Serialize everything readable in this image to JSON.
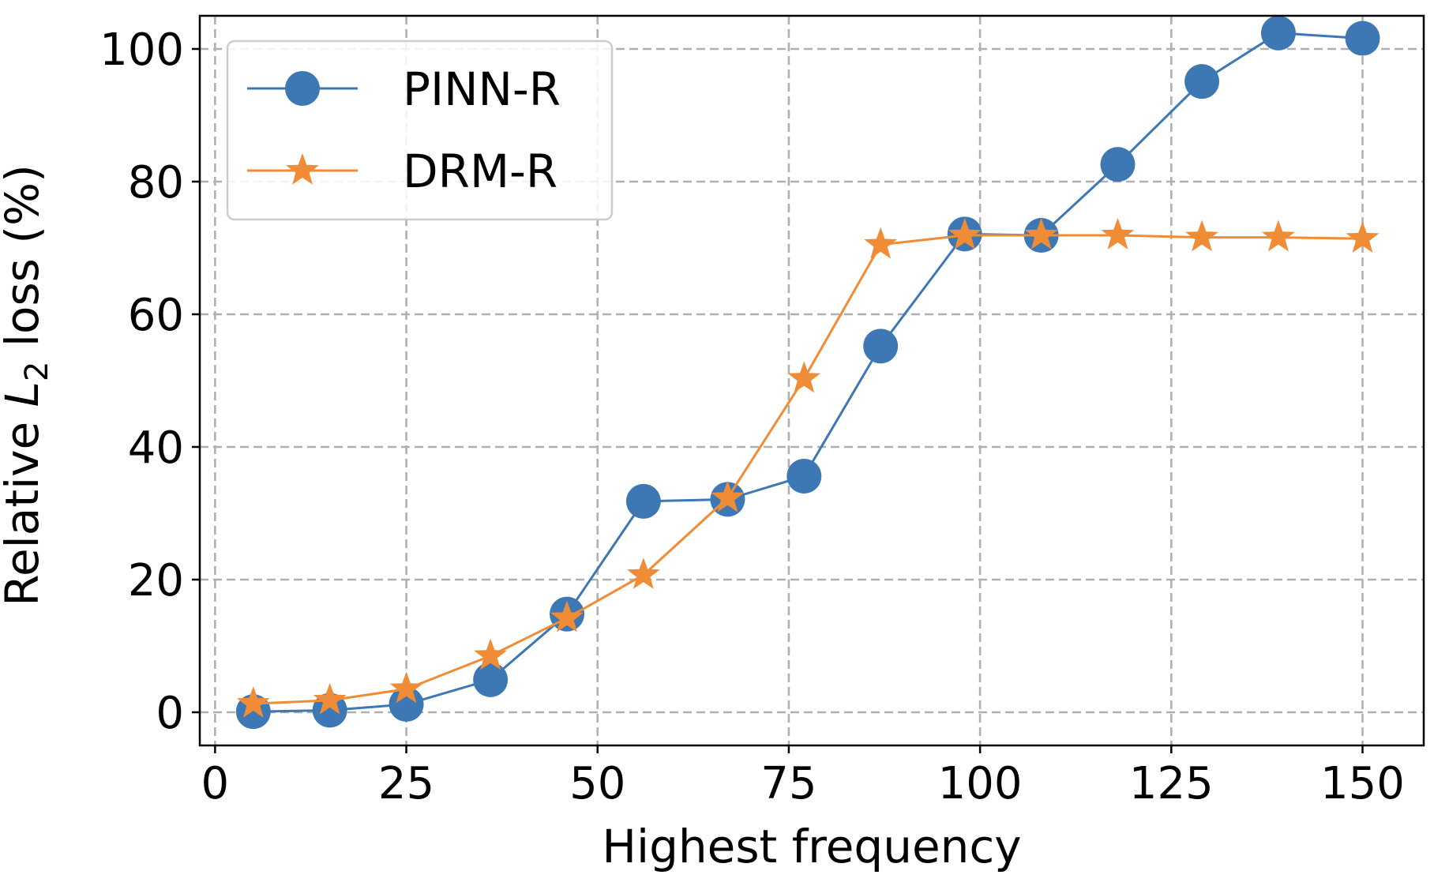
{
  "chart_data": {
    "type": "line",
    "title": "",
    "xlabel": "Highest frequency",
    "ylabel": {
      "prefix": "Relative ",
      "var": "L",
      "sub": "2",
      "suffix": " loss (%)"
    },
    "xlim": [
      -2,
      158
    ],
    "ylim": [
      -5,
      105
    ],
    "xticks": [
      0,
      25,
      50,
      75,
      100,
      125,
      150
    ],
    "yticks": [
      0,
      20,
      40,
      60,
      80,
      100
    ],
    "grid": true,
    "legend_position": "top-left",
    "series": [
      {
        "name": "PINN-R",
        "color": "#3d78b4",
        "marker": "circle",
        "x": [
          5,
          15,
          25,
          36,
          46,
          56,
          67,
          77,
          87,
          98,
          108,
          118,
          129,
          139,
          150
        ],
        "y": [
          0.1,
          0.3,
          1.2,
          4.9,
          14.8,
          31.8,
          32.1,
          35.6,
          55.2,
          72.1,
          71.9,
          82.6,
          95.1,
          102.4,
          101.6
        ]
      },
      {
        "name": "DRM-R",
        "color": "#f08c35",
        "marker": "star",
        "x": [
          5,
          15,
          25,
          36,
          46,
          56,
          67,
          77,
          87,
          98,
          108,
          118,
          129,
          139,
          150
        ],
        "y": [
          1.3,
          1.8,
          3.5,
          8.5,
          14.2,
          20.7,
          32.3,
          50.3,
          70.5,
          71.9,
          71.9,
          71.9,
          71.6,
          71.6,
          71.4
        ]
      }
    ]
  }
}
